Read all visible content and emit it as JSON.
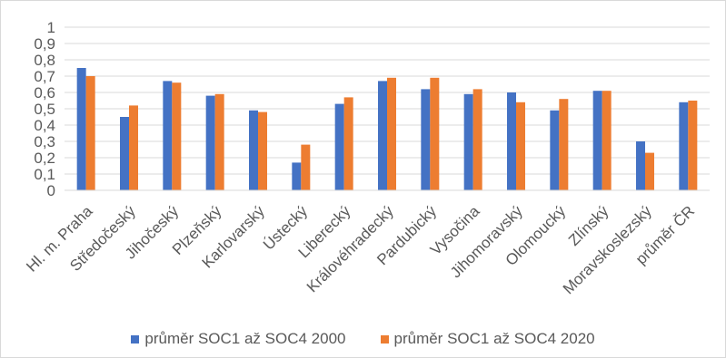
{
  "chart_data": {
    "type": "bar",
    "title": "",
    "xlabel": "",
    "ylabel": "",
    "ylim": [
      0,
      1
    ],
    "yticks": [
      "0",
      "0,1",
      "0,2",
      "0,3",
      "0,4",
      "0,5",
      "0,6",
      "0,7",
      "0,8",
      "0,9",
      "1"
    ],
    "grid": true,
    "legend_position": "bottom",
    "categories": [
      "Hl. m. Praha",
      "Středočeský",
      "Jihočeský",
      "Plzeňský",
      "Karlovarský",
      "Ústecký",
      "Liberecký",
      "Královéhradecký",
      "Pardubický",
      "Vysočina",
      "Jihomoravský",
      "Olomoucký",
      "Zlínský",
      "Moravskoslezský",
      "průměr ČR"
    ],
    "series": [
      {
        "name": "průměr SOC1 až SOC4 2000",
        "color": "#4472c4",
        "values": [
          0.75,
          0.45,
          0.67,
          0.58,
          0.49,
          0.17,
          0.53,
          0.67,
          0.62,
          0.59,
          0.6,
          0.49,
          0.61,
          0.3,
          0.54
        ]
      },
      {
        "name": "průměr SOC1 až SOC4 2020",
        "color": "#ed7d31",
        "values": [
          0.7,
          0.52,
          0.66,
          0.59,
          0.48,
          0.28,
          0.57,
          0.69,
          0.69,
          0.62,
          0.54,
          0.56,
          0.61,
          0.23,
          0.55
        ]
      }
    ]
  }
}
